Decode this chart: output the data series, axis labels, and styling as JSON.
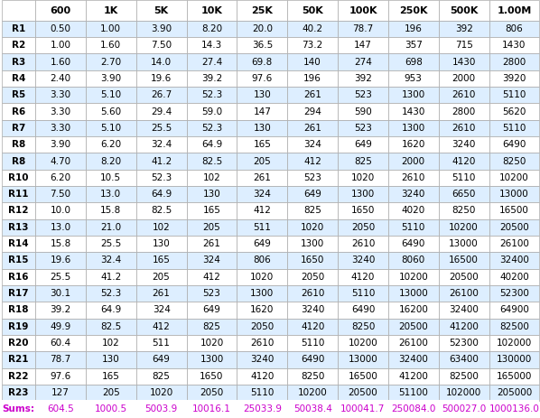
{
  "columns": [
    "600",
    "1K",
    "5K",
    "10K",
    "25K",
    "50K",
    "100K",
    "250K",
    "500K",
    "1.00M"
  ],
  "rows": [
    "R1",
    "R2",
    "R3",
    "R4",
    "R5",
    "R6",
    "R7",
    "R8",
    "R8",
    "R10",
    "R11",
    "R12",
    "R13",
    "R14",
    "R15",
    "R16",
    "R17",
    "R18",
    "R19",
    "R20",
    "R21",
    "R22",
    "R23"
  ],
  "data": [
    [
      "0.50",
      "1.00",
      "3.90",
      "8.20",
      "20.0",
      "40.2",
      "78.7",
      "196",
      "392",
      "806"
    ],
    [
      "1.00",
      "1.60",
      "7.50",
      "14.3",
      "36.5",
      "73.2",
      "147",
      "357",
      "715",
      "1430"
    ],
    [
      "1.60",
      "2.70",
      "14.0",
      "27.4",
      "69.8",
      "140",
      "274",
      "698",
      "1430",
      "2800"
    ],
    [
      "2.40",
      "3.90",
      "19.6",
      "39.2",
      "97.6",
      "196",
      "392",
      "953",
      "2000",
      "3920"
    ],
    [
      "3.30",
      "5.10",
      "26.7",
      "52.3",
      "130",
      "261",
      "523",
      "1300",
      "2610",
      "5110"
    ],
    [
      "3.30",
      "5.60",
      "29.4",
      "59.0",
      "147",
      "294",
      "590",
      "1430",
      "2800",
      "5620"
    ],
    [
      "3.30",
      "5.10",
      "25.5",
      "52.3",
      "130",
      "261",
      "523",
      "1300",
      "2610",
      "5110"
    ],
    [
      "3.90",
      "6.20",
      "32.4",
      "64.9",
      "165",
      "324",
      "649",
      "1620",
      "3240",
      "6490"
    ],
    [
      "4.70",
      "8.20",
      "41.2",
      "82.5",
      "205",
      "412",
      "825",
      "2000",
      "4120",
      "8250"
    ],
    [
      "6.20",
      "10.5",
      "52.3",
      "102",
      "261",
      "523",
      "1020",
      "2610",
      "5110",
      "10200"
    ],
    [
      "7.50",
      "13.0",
      "64.9",
      "130",
      "324",
      "649",
      "1300",
      "3240",
      "6650",
      "13000"
    ],
    [
      "10.0",
      "15.8",
      "82.5",
      "165",
      "412",
      "825",
      "1650",
      "4020",
      "8250",
      "16500"
    ],
    [
      "13.0",
      "21.0",
      "102",
      "205",
      "511",
      "1020",
      "2050",
      "5110",
      "10200",
      "20500"
    ],
    [
      "15.8",
      "25.5",
      "130",
      "261",
      "649",
      "1300",
      "2610",
      "6490",
      "13000",
      "26100"
    ],
    [
      "19.6",
      "32.4",
      "165",
      "324",
      "806",
      "1650",
      "3240",
      "8060",
      "16500",
      "32400"
    ],
    [
      "25.5",
      "41.2",
      "205",
      "412",
      "1020",
      "2050",
      "4120",
      "10200",
      "20500",
      "40200"
    ],
    [
      "30.1",
      "52.3",
      "261",
      "523",
      "1300",
      "2610",
      "5110",
      "13000",
      "26100",
      "52300"
    ],
    [
      "39.2",
      "64.9",
      "324",
      "649",
      "1620",
      "3240",
      "6490",
      "16200",
      "32400",
      "64900"
    ],
    [
      "49.9",
      "82.5",
      "412",
      "825",
      "2050",
      "4120",
      "8250",
      "20500",
      "41200",
      "82500"
    ],
    [
      "60.4",
      "102",
      "511",
      "1020",
      "2610",
      "5110",
      "10200",
      "26100",
      "52300",
      "102000"
    ],
    [
      "78.7",
      "130",
      "649",
      "1300",
      "3240",
      "6490",
      "13000",
      "32400",
      "63400",
      "130000"
    ],
    [
      "97.6",
      "165",
      "825",
      "1650",
      "4120",
      "8250",
      "16500",
      "41200",
      "82500",
      "165000"
    ],
    [
      "127",
      "205",
      "1020",
      "2050",
      "5110",
      "10200",
      "20500",
      "51100",
      "102000",
      "205000"
    ]
  ],
  "sums": [
    "604.5",
    "1000.5",
    "5003.9",
    "10016.1",
    "25033.9",
    "50038.4",
    "100041.7",
    "250084.0",
    "500027.0",
    "1000136.0"
  ],
  "sums_label": "Sums:",
  "sums_color": "#CC00CC",
  "background_color": "#ffffff",
  "row_label_bg": "#ddeeff",
  "alt_row_color": "#ddeeff",
  "normal_row_color": "#ffffff",
  "header_bg": "#ffffff",
  "cell_edge_color": "#aaaaaa",
  "header_font_size": 8.0,
  "data_font_size": 7.5,
  "sums_font_size": 7.5
}
